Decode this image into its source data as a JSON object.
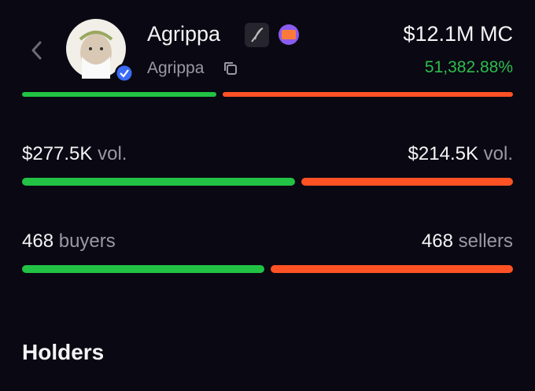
{
  "header": {
    "name": "Agrippa",
    "ticker": "Agrippa",
    "market_cap": "$12.1M MC",
    "change": "51,382.88%"
  },
  "volume": {
    "buy": {
      "value": 277500,
      "label": "$277.5K"
    },
    "buy_unit": "vol.",
    "sell": {
      "value": 214500,
      "label": "$214.5K"
    },
    "sell_unit": "vol."
  },
  "traders": {
    "buyers": 468,
    "buyers_label": "buyers",
    "sellers": 468,
    "sellers_label": "sellers"
  },
  "section": {
    "title": "Holders"
  }
}
